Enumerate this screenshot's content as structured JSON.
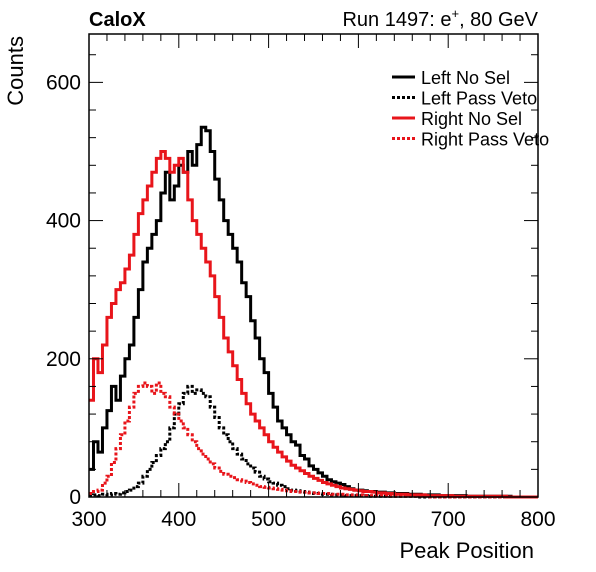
{
  "header": {
    "left_label": "CaloX",
    "right_label_prefix": "Run 1497: e",
    "right_label_sup": "+",
    "right_label_suffix": ", 80 GeV"
  },
  "chart_data": {
    "type": "line",
    "style": "step-histogram",
    "xlabel": "Peak Position",
    "ylabel": "Counts",
    "xlim": [
      300,
      800
    ],
    "ylim": [
      0,
      670
    ],
    "x_ticks": [
      300,
      400,
      500,
      600,
      700,
      800
    ],
    "y_ticks": [
      0,
      200,
      400,
      600
    ],
    "grid": false,
    "legend_position": "top-right",
    "bin_width": 5,
    "x": [
      302.5,
      307.5,
      312.5,
      317.5,
      322.5,
      327.5,
      332.5,
      337.5,
      342.5,
      347.5,
      352.5,
      357.5,
      362.5,
      367.5,
      372.5,
      377.5,
      382.5,
      387.5,
      392.5,
      397.5,
      402.5,
      407.5,
      412.5,
      417.5,
      422.5,
      427.5,
      432.5,
      437.5,
      442.5,
      447.5,
      452.5,
      457.5,
      462.5,
      467.5,
      472.5,
      477.5,
      482.5,
      487.5,
      492.5,
      497.5,
      502.5,
      507.5,
      512.5,
      517.5,
      522.5,
      527.5,
      532.5,
      537.5,
      542.5,
      547.5,
      552.5,
      557.5,
      562.5,
      567.5,
      572.5,
      577.5,
      582.5,
      587.5,
      592.5,
      597.5,
      602.5,
      607.5,
      612.5,
      617.5,
      622.5,
      627.5,
      632.5,
      637.5,
      642.5,
      647.5,
      652.5,
      657.5,
      662.5,
      667.5,
      672.5,
      677.5,
      682.5,
      687.5,
      692.5,
      697.5,
      702.5,
      707.5,
      712.5,
      717.5,
      722.5,
      727.5,
      732.5,
      737.5,
      742.5,
      747.5,
      752.5,
      757.5,
      762.5,
      767.5,
      772.5,
      777.5,
      782.5,
      787.5,
      792.5,
      797.5
    ],
    "series": [
      {
        "name": "Left No Sel",
        "color": "#000000",
        "dash": "solid",
        "values": [
          40,
          80,
          65,
          100,
          125,
          160,
          140,
          175,
          200,
          220,
          260,
          300,
          340,
          360,
          380,
          400,
          440,
          470,
          430,
          450,
          480,
          470,
          500,
          480,
          510,
          535,
          530,
          500,
          460,
          430,
          400,
          380,
          360,
          340,
          310,
          290,
          255,
          230,
          200,
          180,
          150,
          130,
          110,
          100,
          90,
          80,
          75,
          60,
          55,
          45,
          40,
          35,
          30,
          25,
          22,
          20,
          18,
          15,
          12,
          10,
          10,
          9,
          8,
          8,
          7,
          7,
          6,
          6,
          5,
          5,
          5,
          4,
          4,
          4,
          3,
          3,
          3,
          3,
          2,
          2,
          2,
          2,
          2,
          2,
          1,
          1,
          1,
          1,
          1,
          1,
          1,
          1,
          1,
          1,
          0,
          0,
          0,
          0,
          0,
          0
        ]
      },
      {
        "name": "Left Pass Veto",
        "color": "#000000",
        "dash": "dotted",
        "values": [
          2,
          3,
          2,
          4,
          3,
          5,
          4,
          6,
          8,
          10,
          15,
          20,
          30,
          40,
          50,
          60,
          70,
          80,
          100,
          120,
          135,
          150,
          160,
          150,
          155,
          150,
          145,
          130,
          115,
          100,
          90,
          80,
          70,
          62,
          55,
          48,
          42,
          36,
          30,
          26,
          22,
          20,
          17,
          15,
          12,
          10,
          9,
          8,
          7,
          6,
          5,
          5,
          4,
          4,
          3,
          3,
          3,
          2,
          2,
          2,
          2,
          2,
          1,
          1,
          1,
          1,
          1,
          1,
          1,
          1,
          1,
          1,
          1,
          0,
          0,
          0,
          0,
          0,
          0,
          0,
          0,
          0,
          0,
          0,
          0,
          0,
          0,
          0,
          0,
          0,
          0,
          0,
          0,
          0,
          0,
          0,
          0,
          0,
          0,
          0
        ]
      },
      {
        "name": "Right No Sel",
        "color": "#e8151b",
        "dash": "solid",
        "values": [
          140,
          200,
          180,
          220,
          260,
          280,
          300,
          310,
          330,
          350,
          380,
          410,
          430,
          450,
          470,
          490,
          500,
          490,
          470,
          480,
          490,
          470,
          430,
          400,
          380,
          360,
          340,
          320,
          290,
          260,
          230,
          210,
          190,
          170,
          150,
          135,
          120,
          110,
          100,
          90,
          80,
          72,
          65,
          58,
          52,
          46,
          42,
          38,
          34,
          30,
          27,
          24,
          21,
          19,
          17,
          15,
          13,
          12,
          11,
          10,
          9,
          8,
          8,
          7,
          6,
          6,
          5,
          5,
          4,
          4,
          4,
          3,
          3,
          3,
          3,
          2,
          2,
          2,
          2,
          2,
          2,
          1,
          1,
          1,
          1,
          1,
          1,
          1,
          1,
          1,
          1,
          1,
          1,
          0,
          0,
          0,
          0,
          0,
          0,
          0
        ]
      },
      {
        "name": "Right Pass Veto",
        "color": "#e8151b",
        "dash": "dotted",
        "values": [
          5,
          8,
          10,
          20,
          30,
          50,
          70,
          90,
          110,
          130,
          150,
          160,
          165,
          160,
          150,
          165,
          150,
          145,
          130,
          120,
          110,
          100,
          90,
          80,
          70,
          62,
          55,
          48,
          42,
          37,
          33,
          30,
          28,
          25,
          23,
          21,
          19,
          17,
          15,
          14,
          13,
          12,
          11,
          10,
          9,
          8,
          8,
          7,
          7,
          6,
          6,
          5,
          5,
          5,
          4,
          4,
          4,
          3,
          3,
          3,
          3,
          2,
          2,
          2,
          2,
          2,
          2,
          1,
          1,
          1,
          1,
          1,
          1,
          1,
          1,
          1,
          0,
          0,
          0,
          0,
          0,
          0,
          0,
          0,
          0,
          0,
          0,
          0,
          0,
          0,
          0,
          0,
          0,
          0,
          0,
          0,
          0,
          0,
          0,
          0
        ]
      }
    ]
  }
}
